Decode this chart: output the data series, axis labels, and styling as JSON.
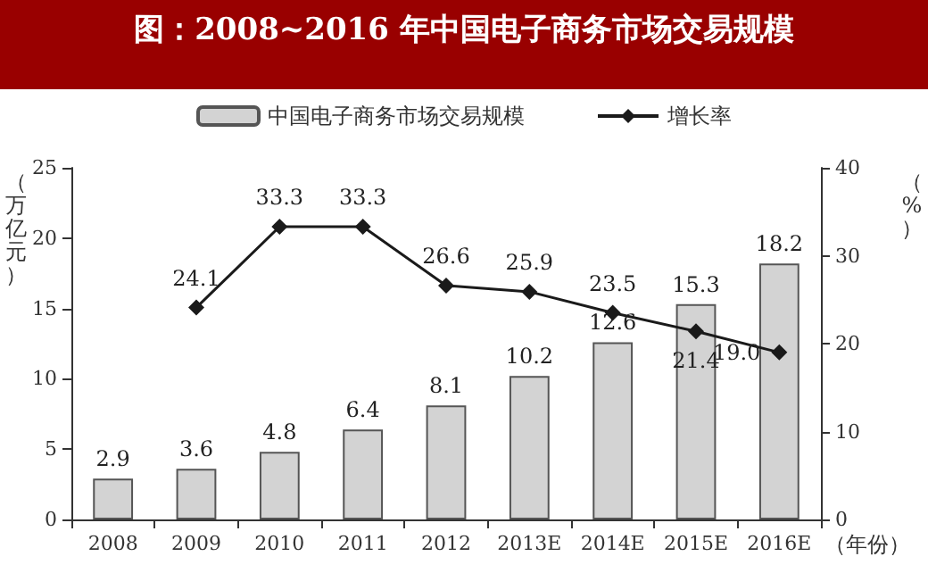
{
  "chart_data": {
    "type": "bar",
    "title": "图：2008~2016 年中国电子商务市场交易规模",
    "categories": [
      "2008",
      "2009",
      "2010",
      "2011",
      "2012",
      "2013E",
      "2014E",
      "2015E",
      "2016E"
    ],
    "xlabel": "（年份）",
    "ylabel": "（万亿元）",
    "y2label": "（%）",
    "series": [
      {
        "name": "中国电子商务市场交易规模",
        "color": "#d3d3d3",
        "values": [
          2.9,
          3.6,
          4.8,
          6.4,
          8.1,
          10.2,
          12.6,
          15.3,
          18.2
        ]
      },
      {
        "name": "增长率",
        "type": "line",
        "axis": "y2",
        "color": "#1a1a1a",
        "marker": "diamond",
        "values": [
          null,
          24.1,
          33.3,
          33.3,
          26.6,
          25.9,
          23.5,
          21.4,
          19.0
        ],
        "value_labels": [
          null,
          "24.1",
          "33.3",
          "33.3",
          "26.6",
          "25.9",
          "23.5",
          "21.4",
          "19.0"
        ]
      }
    ],
    "ylim": [
      0,
      25
    ],
    "yticks": [
      0,
      5,
      10,
      15,
      20,
      25
    ],
    "y2lim": [
      0,
      40
    ],
    "y2ticks": [
      0,
      10,
      20,
      30,
      40
    ],
    "data_labels": true,
    "legend": "top",
    "grid": false
  }
}
